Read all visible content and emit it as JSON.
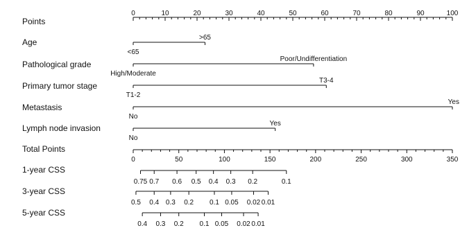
{
  "chart_data": {
    "type": "nomogram",
    "title": "",
    "points_scale": {
      "label": "Points",
      "min": 0,
      "max": 100,
      "major_ticks": [
        0,
        10,
        20,
        30,
        40,
        50,
        60,
        70,
        80,
        90,
        100
      ],
      "tick_labels": [
        "0",
        "10",
        "20",
        "30",
        "40",
        "50",
        "60",
        "70",
        "80",
        "90",
        "100"
      ],
      "minor_step": 2
    },
    "predictors": [
      {
        "label": "Age",
        "levels": [
          {
            "name": "<65",
            "points": 0
          },
          {
            "name": ">65",
            "points": 22.5
          }
        ]
      },
      {
        "label": "Pathological grade",
        "levels": [
          {
            "name": "High/Moderate",
            "points": 0
          },
          {
            "name": "Poor/Undifferentiation",
            "points": 56.5
          }
        ]
      },
      {
        "label": "Primary tumor stage",
        "levels": [
          {
            "name": "T1-2",
            "points": 0
          },
          {
            "name": "T3-4",
            "points": 60.5
          }
        ]
      },
      {
        "label": "Metastasis",
        "levels": [
          {
            "name": "No",
            "points": 0
          },
          {
            "name": "Yes",
            "points": 100
          }
        ]
      },
      {
        "label": "Lymph node invasion",
        "levels": [
          {
            "name": "No",
            "points": 0
          },
          {
            "name": "Yes",
            "points": 44.5
          }
        ]
      }
    ],
    "total_points": {
      "label": "Total Points",
      "min": 0,
      "max": 350,
      "major_ticks": [
        0,
        50,
        100,
        150,
        200,
        250,
        300,
        350
      ],
      "tick_labels": [
        "0",
        "50",
        "100",
        "150",
        "200",
        "250",
        "300",
        "350"
      ],
      "minor_step": 10
    },
    "outcomes": [
      {
        "label": "1-year CSS",
        "ticks": [
          {
            "label": "0.75",
            "total_points": 8
          },
          {
            "label": "0.7",
            "total_points": 23
          },
          {
            "label": "0.6",
            "total_points": 48
          },
          {
            "label": "0.5",
            "total_points": 69
          },
          {
            "label": "0.4",
            "total_points": 88
          },
          {
            "label": "0.3",
            "total_points": 107
          },
          {
            "label": "0.2",
            "total_points": 131
          },
          {
            "label": "0.1",
            "total_points": 168
          }
        ]
      },
      {
        "label": "3-year CSS",
        "ticks": [
          {
            "label": "0.5",
            "total_points": 3
          },
          {
            "label": "0.4",
            "total_points": 23
          },
          {
            "label": "0.3",
            "total_points": 41
          },
          {
            "label": "0.2",
            "total_points": 61
          },
          {
            "label": "0.1",
            "total_points": 89
          },
          {
            "label": "0.05",
            "total_points": 108
          },
          {
            "label": "0.02",
            "total_points": 132
          },
          {
            "label": "0.01",
            "total_points": 148
          }
        ]
      },
      {
        "label": "5-year CSS",
        "ticks": [
          {
            "label": "0.4",
            "total_points": 10
          },
          {
            "label": "0.3",
            "total_points": 30
          },
          {
            "label": "0.2",
            "total_points": 50
          },
          {
            "label": "0.1",
            "total_points": 78
          },
          {
            "label": "0.05",
            "total_points": 97
          },
          {
            "label": "0.02",
            "total_points": 121
          },
          {
            "label": "0.01",
            "total_points": 137
          }
        ]
      }
    ]
  }
}
